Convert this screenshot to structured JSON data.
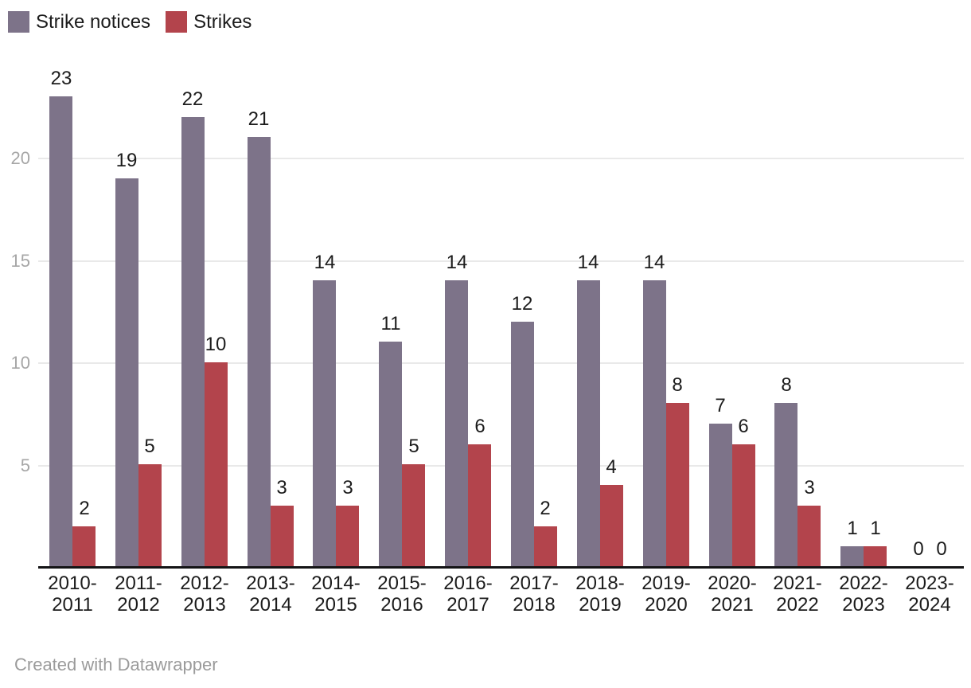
{
  "legend": {
    "items": [
      {
        "label": "Strike notices",
        "color": "#7d7389"
      },
      {
        "label": "Strikes",
        "color": "#b3444c"
      }
    ]
  },
  "chart_data": {
    "type": "bar",
    "title": "",
    "xlabel": "",
    "ylabel": "",
    "categories": [
      "2010-2011",
      "2011-2012",
      "2012-2013",
      "2013-2014",
      "2014-2015",
      "2015-2016",
      "2016-2017",
      "2017-2018",
      "2018-2019",
      "2019-2020",
      "2020-2021",
      "2021-2022",
      "2022-2023",
      "2023-2024"
    ],
    "series": [
      {
        "name": "Strike notices",
        "color": "#7d7389",
        "values": [
          23,
          19,
          22,
          21,
          14,
          11,
          14,
          12,
          14,
          14,
          7,
          8,
          1,
          0
        ]
      },
      {
        "name": "Strikes",
        "color": "#b3444c",
        "values": [
          2,
          5,
          10,
          3,
          3,
          5,
          6,
          2,
          4,
          8,
          6,
          3,
          1,
          0
        ]
      }
    ],
    "ylim": [
      0,
      24
    ],
    "yticks": [
      5,
      10,
      15,
      20
    ],
    "grid": true,
    "value_labels": true,
    "legend_position": "top-left"
  },
  "footer": {
    "attribution": "Created with Datawrapper"
  }
}
